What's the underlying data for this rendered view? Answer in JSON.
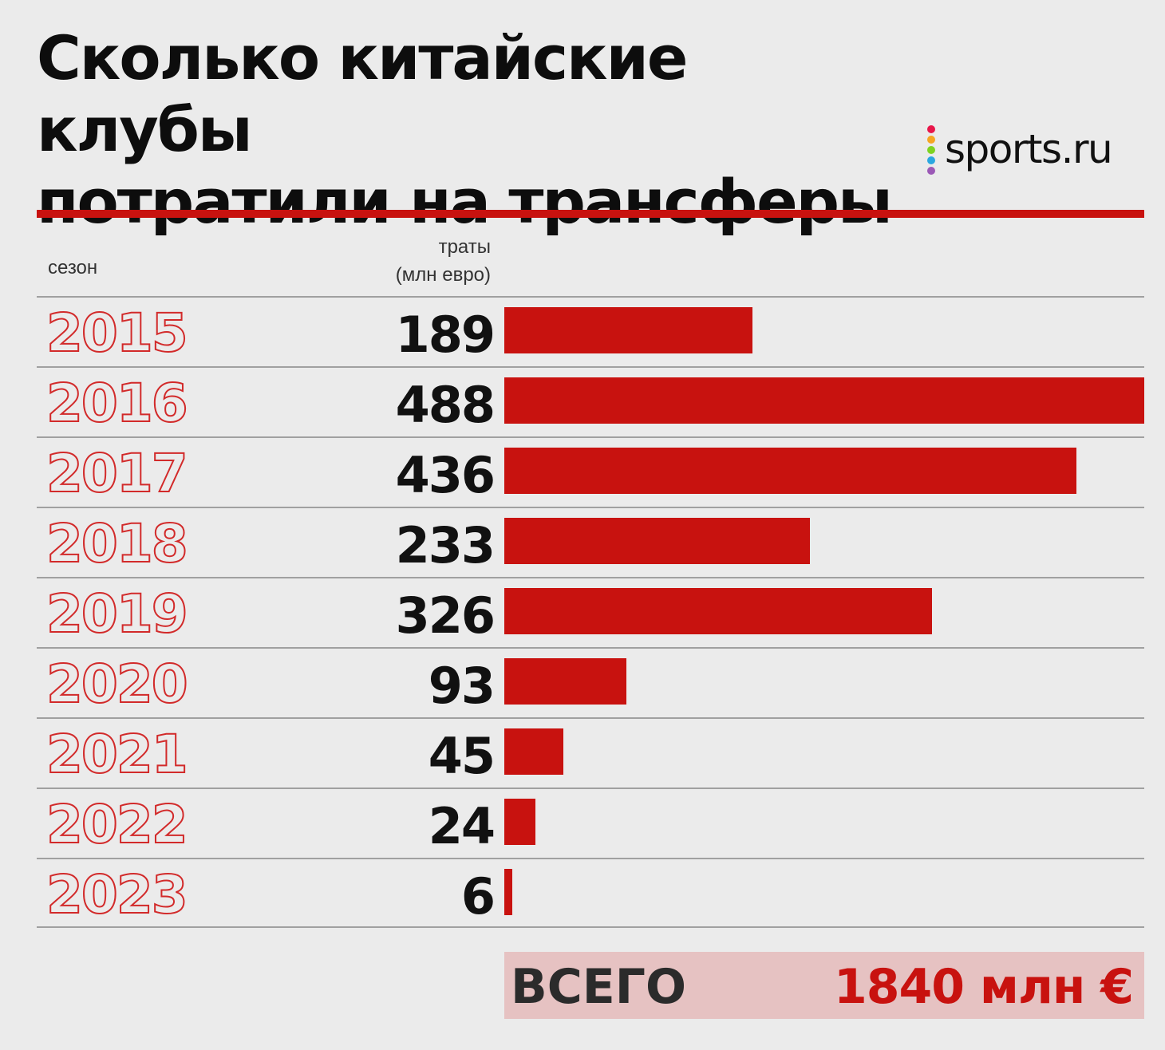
{
  "title": "Сколько китайские клубы\nпотратили на трансферы",
  "logo": {
    "text": "sports.ru",
    "dot_colors": [
      "#e8164a",
      "#f5a623",
      "#7ed321",
      "#2aa7e0",
      "#9b59b6"
    ]
  },
  "accent_color": "#c8120f",
  "chart_data": {
    "type": "bar",
    "orientation": "horizontal",
    "xlabel": "сезон",
    "ylabel": "траты (млн евро)",
    "ylabel_lines": [
      "траты",
      "(млн евро)"
    ],
    "categories": [
      "2015",
      "2016",
      "2017",
      "2018",
      "2019",
      "2020",
      "2021",
      "2022",
      "2023"
    ],
    "values": [
      189,
      488,
      436,
      233,
      326,
      93,
      45,
      24,
      6
    ],
    "value_labels": [
      "189",
      "488",
      "436",
      "233",
      "326",
      "93",
      "45",
      "24",
      "6"
    ],
    "xlim": [
      0,
      488
    ],
    "bar_color": "#c8120f",
    "total": {
      "label": "ВСЕГО",
      "value": "1840 млн €"
    }
  }
}
